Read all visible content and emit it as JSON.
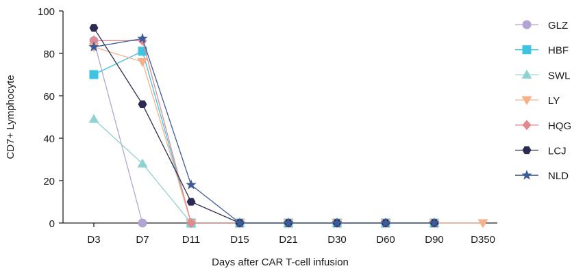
{
  "chart_data": {
    "type": "line",
    "xlabel": "Days after CAR T-cell infusion",
    "ylabel": "CD7+ Lymphocyte",
    "ylim": [
      0,
      100
    ],
    "yticks": [
      0,
      20,
      40,
      60,
      80,
      100
    ],
    "categories": [
      "D3",
      "D7",
      "D11",
      "D15",
      "D21",
      "D30",
      "D60",
      "D90",
      "D350"
    ],
    "legend_position": "right",
    "series": [
      {
        "name": "GLZ",
        "color": "#b3a4d4",
        "marker": "circle",
        "values": [
          86,
          0,
          null,
          null,
          null,
          null,
          null,
          null,
          null
        ]
      },
      {
        "name": "HBF",
        "color": "#3ec3e0",
        "marker": "square",
        "values": [
          70,
          81,
          0,
          0,
          0,
          0,
          0,
          0,
          null
        ]
      },
      {
        "name": "SWL",
        "color": "#8fd3d0",
        "marker": "triangle-up",
        "values": [
          49,
          28,
          0,
          0,
          0,
          0,
          0,
          0,
          null
        ]
      },
      {
        "name": "LY",
        "color": "#f7b08a",
        "marker": "triangle-down",
        "values": [
          83,
          76,
          0,
          0,
          0,
          0,
          0,
          0,
          0
        ]
      },
      {
        "name": "HQG",
        "color": "#e2898f",
        "marker": "diamond",
        "values": [
          86,
          86,
          0,
          0,
          0,
          0,
          0,
          0,
          null
        ]
      },
      {
        "name": "LCJ",
        "color": "#2a2a52",
        "marker": "hexagon",
        "values": [
          92,
          56,
          10,
          0,
          0,
          0,
          0,
          0,
          null
        ]
      },
      {
        "name": "NLD",
        "color": "#3d5a99",
        "marker": "star",
        "values": [
          83,
          87,
          18,
          0,
          0,
          0,
          0,
          0,
          null
        ]
      }
    ]
  }
}
